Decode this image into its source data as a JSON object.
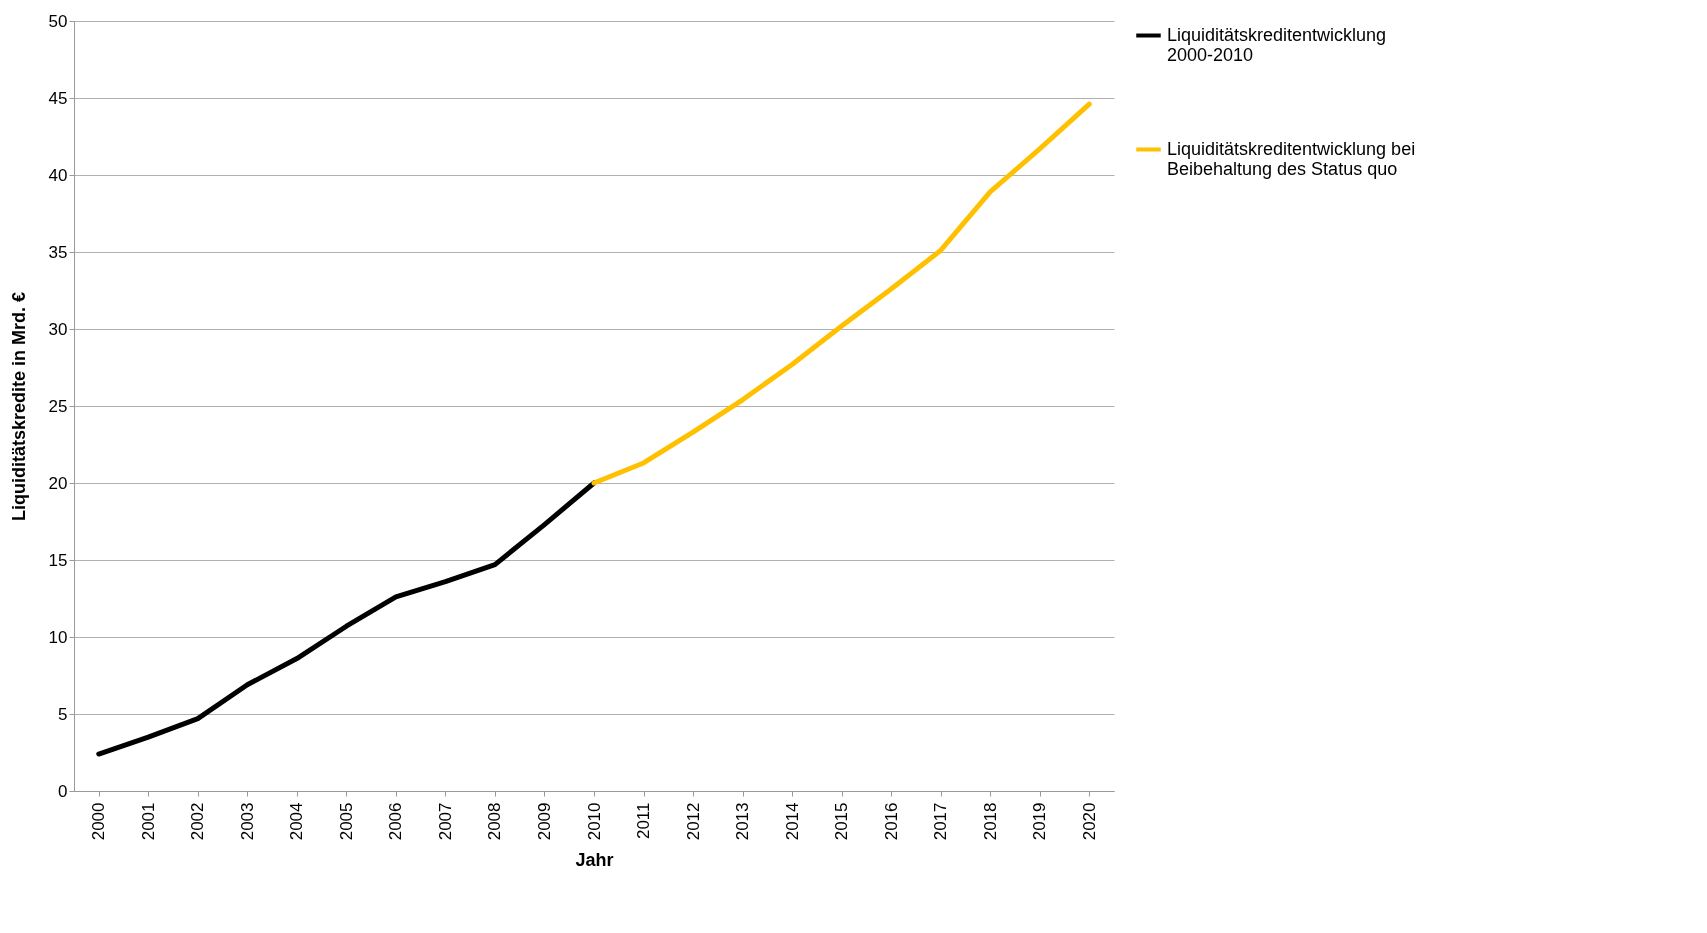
{
  "chart_data": {
    "type": "line",
    "xlabel": "Jahr",
    "ylabel": "Liquiditätskredite in Mrd. €",
    "categories": [
      "2000",
      "2001",
      "2002",
      "2003",
      "2004",
      "2005",
      "2006",
      "2007",
      "2008",
      "2009",
      "2010",
      "2011",
      "2012",
      "2013",
      "2014",
      "2015",
      "2016",
      "2017",
      "2018",
      "2019",
      "2020"
    ],
    "series": [
      {
        "name": "Liquiditätskreditentwicklung 2000-2010",
        "color": "#000000",
        "values": [
          2.4,
          3.5,
          4.7,
          6.9,
          8.6,
          10.7,
          12.6,
          13.6,
          14.7,
          17.3,
          20.0,
          null,
          null,
          null,
          null,
          null,
          null,
          null,
          null,
          null,
          null
        ]
      },
      {
        "name": "Liquiditätskreditentwicklung bei Beibehaltung des Status quo",
        "color": "#ffc000",
        "values": [
          null,
          null,
          null,
          null,
          null,
          null,
          null,
          null,
          null,
          null,
          20.0,
          21.3,
          23.3,
          25.4,
          27.7,
          30.2,
          32.6,
          35.1,
          38.9,
          41.7,
          44.6
        ]
      }
    ],
    "ylim": [
      0,
      50
    ],
    "yticks": [
      0,
      5,
      10,
      15,
      20,
      25,
      30,
      35,
      40,
      45,
      50
    ],
    "grid": "y",
    "legend": "right",
    "marker": "none",
    "line_style": "solid"
  }
}
